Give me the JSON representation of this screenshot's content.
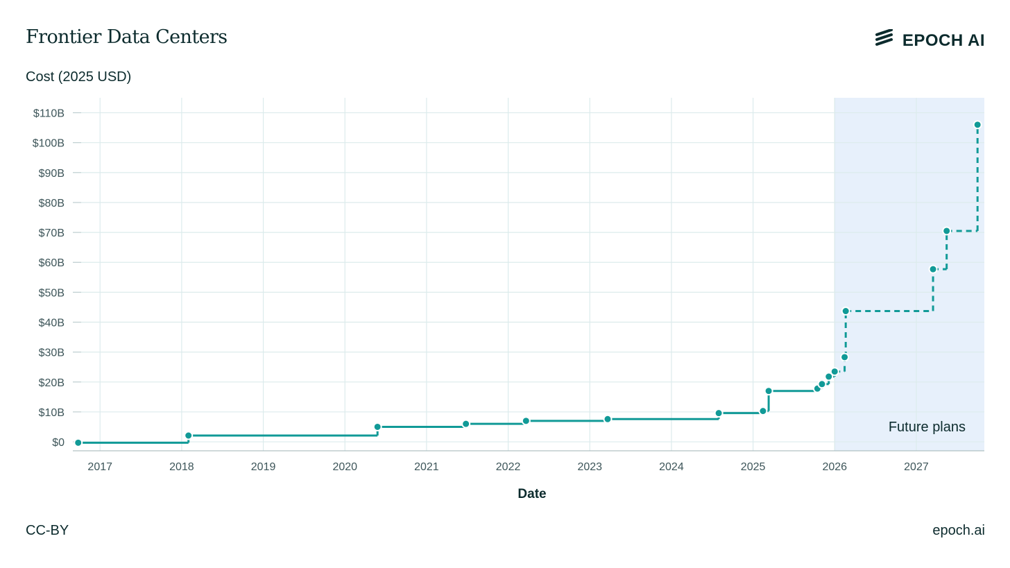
{
  "header": {
    "title": "Frontier Data Centers",
    "brand": "EPOCH AI",
    "brand_icon": "epoch-logo-icon"
  },
  "footer": {
    "license": "CC-BY",
    "site": "epoch.ai"
  },
  "colors": {
    "line": "#119a97",
    "grid": "#dcebec",
    "future_shade": "#e7f0fb",
    "text": "#0c2b2d"
  },
  "chart_data": {
    "type": "line",
    "step": true,
    "ylabel": "Cost (2025 USD)",
    "xlabel": "Date",
    "x_ticks": [
      "2017",
      "2018",
      "2019",
      "2020",
      "2021",
      "2022",
      "2023",
      "2024",
      "2025",
      "2026",
      "2027"
    ],
    "y_ticks": [
      "$0",
      "$10B",
      "$20B",
      "$30B",
      "$40B",
      "$50B",
      "$60B",
      "$70B",
      "$80B",
      "$90B",
      "$100B",
      "$110B"
    ],
    "xlim": [
      "2016-09",
      "2027-11"
    ],
    "ylim": [
      -3,
      115
    ],
    "grid": true,
    "future_region": {
      "start": "2026-01",
      "label": "Future plans",
      "line_style": "dashed"
    },
    "points": [
      {
        "x": "2016-09-25",
        "y": -0.3
      },
      {
        "x": "2018-02-01",
        "y": 2.1
      },
      {
        "x": "2020-05-25",
        "y": 5.0
      },
      {
        "x": "2021-06-25",
        "y": 6.0
      },
      {
        "x": "2022-03-20",
        "y": 7.0
      },
      {
        "x": "2023-03-20",
        "y": 7.6
      },
      {
        "x": "2024-07-30",
        "y": 9.6
      },
      {
        "x": "2025-02-15",
        "y": 10.3
      },
      {
        "x": "2025-03-10",
        "y": 17.0
      },
      {
        "x": "2025-10-15",
        "y": 17.8
      },
      {
        "x": "2025-11-05",
        "y": 19.3
      },
      {
        "x": "2025-12-05",
        "y": 21.8
      },
      {
        "x": "2026-01-01",
        "y": 23.5
      },
      {
        "x": "2026-02-15",
        "y": 28.3
      },
      {
        "x": "2026-02-20",
        "y": 43.7
      },
      {
        "x": "2027-03-15",
        "y": 57.7
      },
      {
        "x": "2027-05-15",
        "y": 70.5
      },
      {
        "x": "2027-10-01",
        "y": 106.0
      }
    ]
  }
}
